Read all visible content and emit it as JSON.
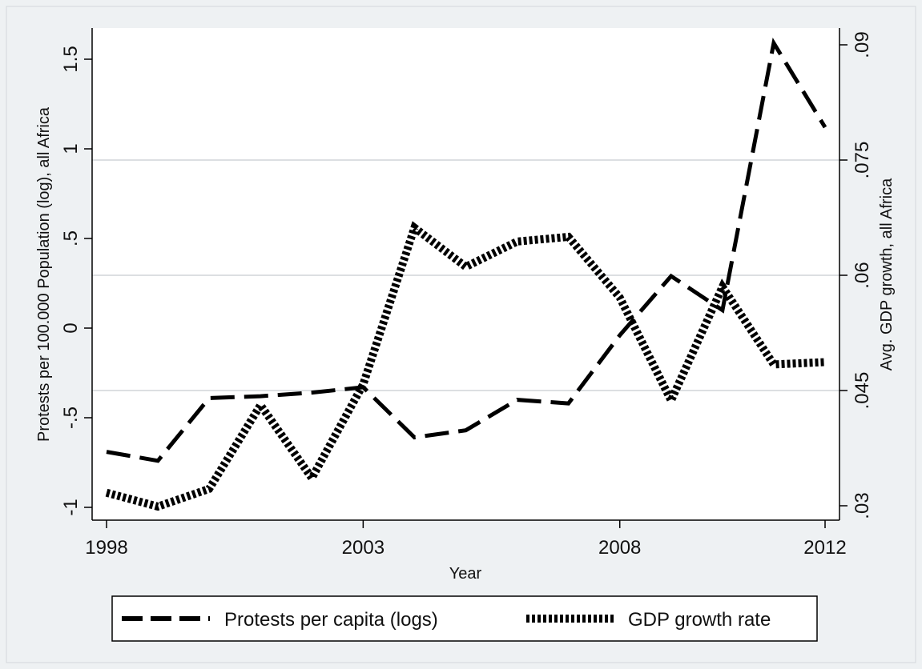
{
  "chart_data": {
    "type": "line",
    "title": "",
    "xlabel": "Year",
    "ylabel_left": "Protests per 100.000 Population (log), all Africa",
    "ylabel_right": "Avg. GDP growth, all Africa",
    "x": [
      1998,
      1999,
      2000,
      2001,
      2002,
      2003,
      2004,
      2005,
      2006,
      2007,
      2008,
      2009,
      2010,
      2011,
      2012
    ],
    "xlim": [
      1998,
      2012
    ],
    "x_ticks": [
      1998,
      2003,
      2008,
      2012
    ],
    "x_tick_labels": [
      "1998",
      "2003",
      "2008",
      "2012"
    ],
    "ylim_left": [
      -1,
      1.5
    ],
    "y_left_ticks": [
      -1,
      -0.5,
      0,
      0.5,
      1,
      1.5
    ],
    "y_left_tick_labels": [
      "-1",
      "-.5",
      "0",
      ".5",
      "1",
      "1.5"
    ],
    "ylim_right": [
      0.03,
      0.09
    ],
    "y_right_ticks": [
      0.03,
      0.045,
      0.06,
      0.075,
      0.09
    ],
    "y_right_tick_labels": [
      ".03",
      ".045",
      ".06",
      ".075",
      ".09"
    ],
    "grid": true,
    "legend_position": "bottom",
    "series": [
      {
        "name": "Protests per capita (logs)",
        "axis": "left",
        "style": "dashed",
        "color": "#000000",
        "values": [
          -0.69,
          -0.74,
          -0.39,
          -0.38,
          -0.36,
          -0.33,
          -0.61,
          -0.57,
          -0.4,
          -0.42,
          -0.04,
          0.29,
          0.1,
          1.59,
          1.12
        ]
      },
      {
        "name": "GDP growth rate",
        "axis": "right",
        "style": "dotted",
        "color": "#000000",
        "values": [
          0.0317,
          0.0299,
          0.0322,
          0.0431,
          0.0336,
          0.0458,
          0.0662,
          0.0611,
          0.0644,
          0.065,
          0.0571,
          0.0437,
          0.0585,
          0.0484,
          0.0487
        ]
      }
    ]
  }
}
